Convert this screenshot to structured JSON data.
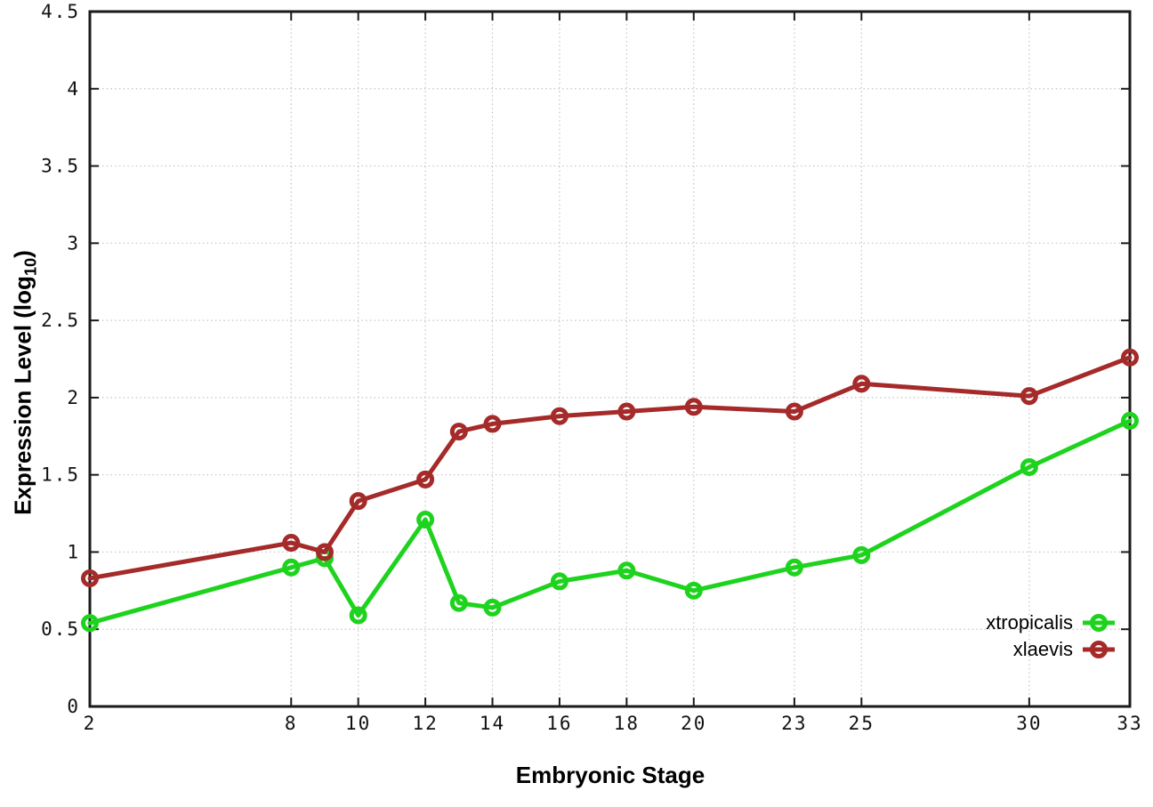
{
  "chart_data": {
    "type": "line",
    "title": "",
    "xlabel": "Embryonic Stage",
    "ylabel": "Expression Level (log10)",
    "ylabel_main": "Expression Level (log",
    "ylabel_sub": "10",
    "ylabel_close": ")",
    "x": [
      2,
      8,
      9,
      10,
      12,
      13,
      14,
      16,
      18,
      20,
      23,
      25,
      30,
      33
    ],
    "xticks": [
      2,
      8,
      10,
      12,
      14,
      16,
      18,
      20,
      23,
      25,
      30,
      33
    ],
    "yticks": [
      0,
      0.5,
      1,
      1.5,
      2,
      2.5,
      3,
      3.5,
      4,
      4.5
    ],
    "xlim": [
      2,
      33
    ],
    "ylim": [
      0,
      4.5
    ],
    "grid": true,
    "legend_position": "bottom-right",
    "series": [
      {
        "name": "xtropicalis",
        "color": "#1ed31e",
        "values": [
          0.54,
          0.9,
          0.96,
          0.59,
          1.21,
          0.67,
          0.64,
          0.81,
          0.88,
          0.75,
          0.9,
          0.98,
          1.55,
          1.85
        ]
      },
      {
        "name": "xlaevis",
        "color": "#a52a2a",
        "values": [
          0.83,
          1.06,
          1.0,
          1.33,
          1.47,
          1.78,
          1.83,
          1.88,
          1.91,
          1.94,
          1.91,
          2.09,
          2.01,
          2.26
        ]
      }
    ]
  },
  "style_colors": {
    "axis": "#1a1a1a",
    "grid": "#c4c4c4",
    "tick_text": "#111111"
  }
}
